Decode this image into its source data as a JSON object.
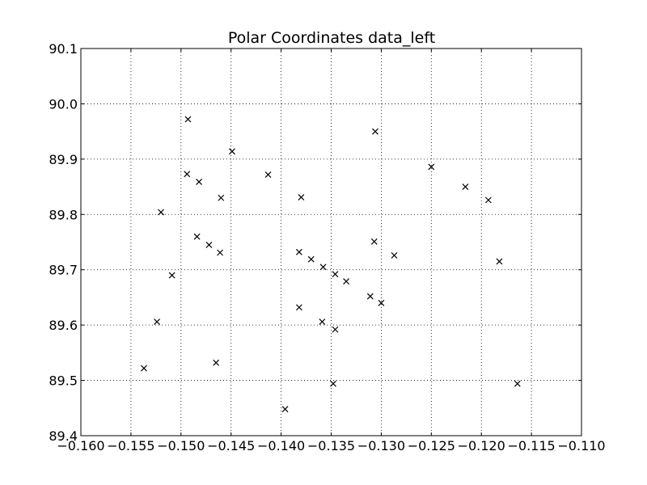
{
  "chart_data": {
    "type": "scatter",
    "title": "Polar Coordinates data_left",
    "xlabel": "",
    "ylabel": "",
    "xlim": [
      -0.16,
      -0.11
    ],
    "ylim": [
      89.4,
      90.1
    ],
    "x_ticks": [
      -0.16,
      -0.155,
      -0.15,
      -0.145,
      -0.14,
      -0.135,
      -0.13,
      -0.125,
      -0.12,
      -0.115,
      -0.11
    ],
    "x_tick_labels": [
      "−0.160",
      "−0.155",
      "−0.150",
      "−0.145",
      "−0.140",
      "−0.135",
      "−0.130",
      "−0.125",
      "−0.120",
      "−0.115",
      "−0.110"
    ],
    "y_ticks": [
      89.4,
      89.5,
      89.6,
      89.7,
      89.8,
      89.9,
      90.0,
      90.1
    ],
    "y_tick_labels": [
      "89.4",
      "89.5",
      "89.6",
      "89.7",
      "89.8",
      "89.9",
      "90.0",
      "90.1"
    ],
    "grid": true,
    "grid_style": "dotted",
    "marker": "x",
    "marker_color": "#000000",
    "axes_color": "#000000",
    "grid_color": "#000000",
    "points": [
      {
        "x": -0.1493,
        "y": 89.972
      },
      {
        "x": -0.1306,
        "y": 89.95
      },
      {
        "x": -0.1449,
        "y": 89.914
      },
      {
        "x": -0.125,
        "y": 89.886
      },
      {
        "x": -0.1494,
        "y": 89.873
      },
      {
        "x": -0.1413,
        "y": 89.872
      },
      {
        "x": -0.1482,
        "y": 89.859
      },
      {
        "x": -0.1216,
        "y": 89.85
      },
      {
        "x": -0.138,
        "y": 89.831
      },
      {
        "x": -0.146,
        "y": 89.83
      },
      {
        "x": -0.1193,
        "y": 89.826
      },
      {
        "x": -0.152,
        "y": 89.804
      },
      {
        "x": -0.1484,
        "y": 89.76
      },
      {
        "x": -0.1307,
        "y": 89.751
      },
      {
        "x": -0.1472,
        "y": 89.745
      },
      {
        "x": -0.1382,
        "y": 89.732
      },
      {
        "x": -0.1461,
        "y": 89.731
      },
      {
        "x": -0.1287,
        "y": 89.726
      },
      {
        "x": -0.137,
        "y": 89.719
      },
      {
        "x": -0.1182,
        "y": 89.715
      },
      {
        "x": -0.1358,
        "y": 89.705
      },
      {
        "x": -0.1346,
        "y": 89.692
      },
      {
        "x": -0.1509,
        "y": 89.69
      },
      {
        "x": -0.1335,
        "y": 89.679
      },
      {
        "x": -0.1311,
        "y": 89.652
      },
      {
        "x": -0.13,
        "y": 89.64
      },
      {
        "x": -0.1382,
        "y": 89.632
      },
      {
        "x": -0.1524,
        "y": 89.606
      },
      {
        "x": -0.1359,
        "y": 89.606
      },
      {
        "x": -0.1346,
        "y": 89.592
      },
      {
        "x": -0.1537,
        "y": 89.522
      },
      {
        "x": -0.1465,
        "y": 89.532
      },
      {
        "x": -0.1348,
        "y": 89.494
      },
      {
        "x": -0.1164,
        "y": 89.494
      },
      {
        "x": -0.1396,
        "y": 89.448
      }
    ]
  }
}
